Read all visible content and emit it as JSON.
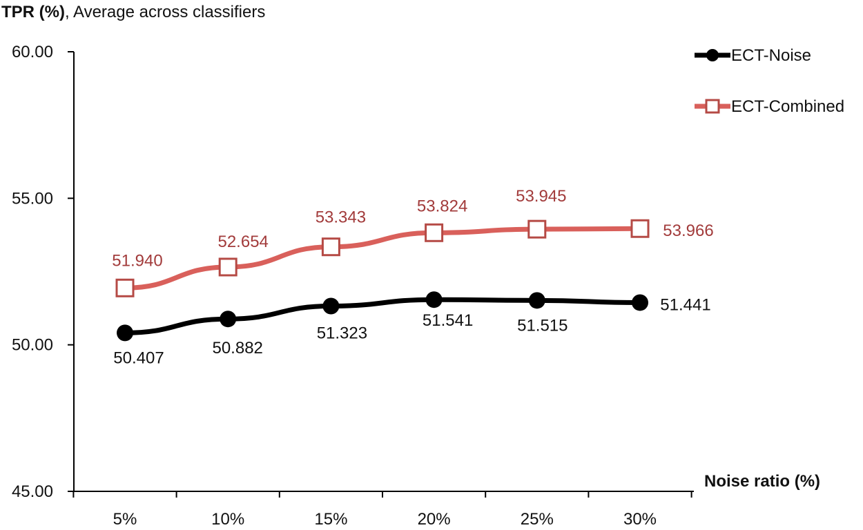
{
  "chart_data": {
    "type": "line",
    "title_bold": "TPR (%)",
    "title_rest": ", Average across classifiers",
    "xlabel": "Noise ratio (%)",
    "categories": [
      "5%",
      "10%",
      "15%",
      "20%",
      "25%",
      "30%"
    ],
    "y_ticks": [
      "45.00",
      "50.00",
      "55.00",
      "60.00"
    ],
    "ylim": [
      45,
      60
    ],
    "grid": false,
    "legend_position": "top-right",
    "series": [
      {
        "name": "ECT-Noise",
        "marker": "circle",
        "color": "#000000",
        "label_color": "#111111",
        "values": [
          50.407,
          50.882,
          51.323,
          51.541,
          51.515,
          51.441
        ],
        "labels": [
          "50.407",
          "50.882",
          "51.323",
          "51.541",
          "51.515",
          "51.441"
        ]
      },
      {
        "name": "ECT-Combined",
        "marker": "square-open",
        "color": "#D9605B",
        "label_color": "#A23B3B",
        "values": [
          51.94,
          52.654,
          53.343,
          53.824,
          53.945,
          53.966
        ],
        "labels": [
          "51.940",
          "52.654",
          "53.343",
          "53.824",
          "53.945",
          "53.966"
        ]
      }
    ]
  }
}
